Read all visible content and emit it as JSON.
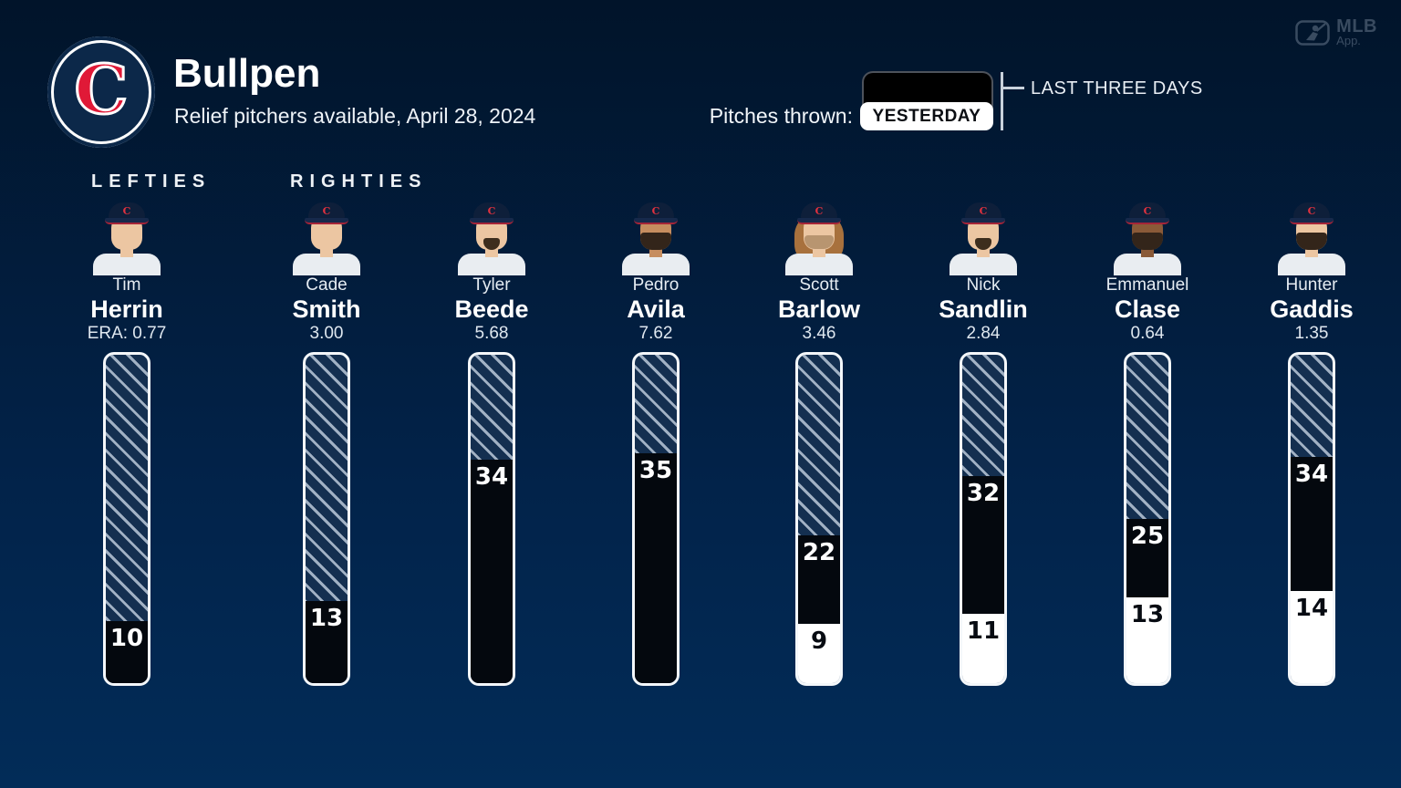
{
  "header": {
    "team_logo_letter": "C",
    "title": "Bullpen",
    "subtitle": "Relief pitchers available, April 28, 2024",
    "legend": {
      "prefix_label": "Pitches thrown:",
      "yesterday_label": "YESTERDAY",
      "range_label": "LAST THREE DAYS"
    },
    "app_badge": {
      "line1": "MLB",
      "line2": "App."
    }
  },
  "sections": {
    "left_label": "LEFTIES",
    "right_label": "RIGHTIES"
  },
  "colors": {
    "background_top": "#01142a",
    "background_bottom": "#022c58",
    "bar_black": "#04080e",
    "bar_white": "#ffffff",
    "hatch_base": "#142f50",
    "hatch_stripe": "#bac8d8",
    "team_red": "#e01937",
    "team_navy": "#0c2849"
  },
  "chart_data": {
    "type": "bar",
    "orientation": "vertical",
    "title": "Bullpen",
    "subtitle": "Relief pitchers available, April 28, 2024",
    "units": "pitches thrown",
    "legend": {
      "black_segment": "YESTERDAY",
      "full_bar": "LAST THREE DAYS"
    },
    "groups": [
      {
        "label": "LEFTIES",
        "pitchers": [
          "Tim Herrin"
        ]
      },
      {
        "label": "RIGHTIES",
        "pitchers": [
          "Cade Smith",
          "Tyler Beede",
          "Pedro Avila",
          "Scott Barlow",
          "Nick Sandlin",
          "Emmanuel Clase",
          "Hunter Gaddis"
        ]
      }
    ],
    "pitchers": [
      {
        "first": "Tim",
        "last": "Herrin",
        "era_display": "ERA: 0.77",
        "era": 0.77,
        "group": "LEFTIES",
        "pitches_yesterday": 10,
        "pitches_prior_days": null,
        "black_fill_pct": 19,
        "white_fill_pct": 0,
        "avatar": {
          "skin": "light",
          "beard": "none",
          "hair": "short"
        }
      },
      {
        "first": "Cade",
        "last": "Smith",
        "era_display": "3.00",
        "era": 3.0,
        "group": "RIGHTIES",
        "pitches_yesterday": 13,
        "pitches_prior_days": null,
        "black_fill_pct": 25,
        "white_fill_pct": 0,
        "avatar": {
          "skin": "light",
          "beard": "none",
          "hair": "short"
        }
      },
      {
        "first": "Tyler",
        "last": "Beede",
        "era_display": "5.68",
        "era": 5.68,
        "group": "RIGHTIES",
        "pitches_yesterday": 34,
        "pitches_prior_days": null,
        "black_fill_pct": 68,
        "white_fill_pct": 0,
        "avatar": {
          "skin": "light",
          "beard": "goatee",
          "hair": "short"
        }
      },
      {
        "first": "Pedro",
        "last": "Avila",
        "era_display": "7.62",
        "era": 7.62,
        "group": "RIGHTIES",
        "pitches_yesterday": 35,
        "pitches_prior_days": null,
        "black_fill_pct": 70,
        "white_fill_pct": 0,
        "avatar": {
          "skin": "tan",
          "beard": "full",
          "hair": "short"
        }
      },
      {
        "first": "Scott",
        "last": "Barlow",
        "era_display": "3.46",
        "era": 3.46,
        "group": "RIGHTIES",
        "pitches_yesterday": 22,
        "pitches_prior_days": 9,
        "black_fill_pct": 27,
        "white_fill_pct": 18,
        "avatar": {
          "skin": "light",
          "beard": "scruff",
          "hair": "long"
        }
      },
      {
        "first": "Nick",
        "last": "Sandlin",
        "era_display": "2.84",
        "era": 2.84,
        "group": "RIGHTIES",
        "pitches_yesterday": 32,
        "pitches_prior_days": 11,
        "black_fill_pct": 42,
        "white_fill_pct": 21,
        "avatar": {
          "skin": "light",
          "beard": "goatee",
          "hair": "short"
        }
      },
      {
        "first": "Emmanuel",
        "last": "Clase",
        "era_display": "0.64",
        "era": 0.64,
        "group": "RIGHTIES",
        "pitches_yesterday": 25,
        "pitches_prior_days": 13,
        "black_fill_pct": 24,
        "white_fill_pct": 26,
        "avatar": {
          "skin": "dark",
          "beard": "full",
          "hair": "short"
        }
      },
      {
        "first": "Hunter",
        "last": "Gaddis",
        "era_display": "1.35",
        "era": 1.35,
        "group": "RIGHTIES",
        "pitches_yesterday": 34,
        "pitches_prior_days": 14,
        "black_fill_pct": 41,
        "white_fill_pct": 28,
        "avatar": {
          "skin": "light",
          "beard": "full",
          "hair": "short"
        }
      }
    ]
  }
}
